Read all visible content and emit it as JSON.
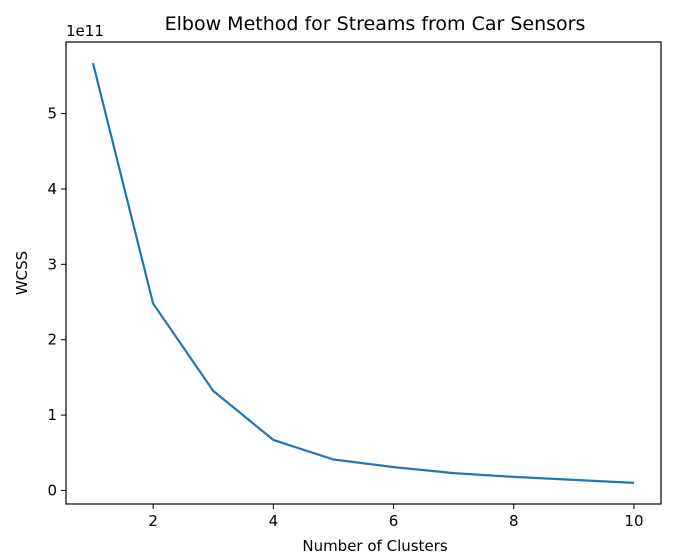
{
  "chart_data": {
    "type": "line",
    "title": "Elbow Method for Streams from Car Sensors",
    "xlabel": "Number of Clusters",
    "ylabel": "WCSS",
    "y_offset_label": "1e11",
    "x": [
      1,
      2,
      3,
      4,
      5,
      6,
      7,
      8,
      9,
      10
    ],
    "series": [
      {
        "values": [
          5.67,
          2.48,
          1.32,
          0.67,
          0.41,
          0.31,
          0.23,
          0.18,
          0.14,
          0.1
        ]
      }
    ],
    "xlim": [
      0.55,
      10.45
    ],
    "ylim": [
      -0.18,
      5.95
    ],
    "xticks": [
      2,
      4,
      6,
      8,
      10
    ],
    "xtick_labels": [
      "2",
      "4",
      "6",
      "8",
      "10"
    ],
    "yticks": [
      0,
      1,
      2,
      3,
      4,
      5
    ],
    "ytick_labels": [
      "0",
      "1",
      "2",
      "3",
      "4",
      "5"
    ],
    "line_color": "#1f77b4",
    "grid": false
  }
}
